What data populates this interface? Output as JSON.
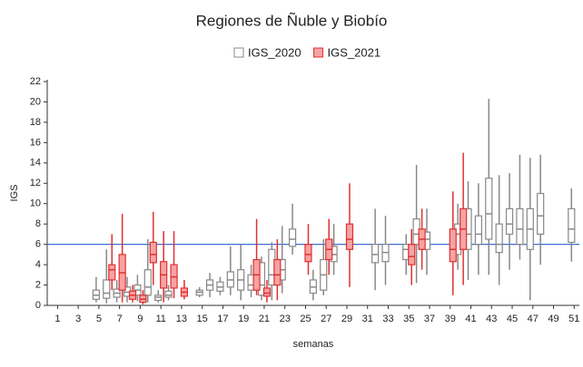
{
  "chart_data": {
    "type": "boxplot",
    "title": "Regiones de Ñuble y Biobío",
    "x_label": "semanas",
    "y_label": "IGS",
    "xlim": [
      0,
      51.5
    ],
    "xticks": [
      1,
      3,
      5,
      7,
      9,
      11,
      13,
      15,
      17,
      19,
      21,
      23,
      25,
      27,
      29,
      31,
      33,
      35,
      37,
      39,
      41,
      43,
      45,
      47,
      49,
      51
    ],
    "ylim": [
      0,
      22
    ],
    "yticks": [
      0,
      2,
      4,
      6,
      8,
      10,
      12,
      14,
      16,
      18,
      20,
      22
    ],
    "reference_line": 6,
    "reference_color": "#3b6fd4",
    "series": [
      {
        "name": "IGS_2020",
        "color": "#888888",
        "fill": "#ffffff",
        "x": [
          5,
          6,
          7,
          8,
          9,
          10,
          11,
          12,
          15,
          16,
          17,
          18,
          19,
          20,
          21,
          22,
          23,
          24,
          26,
          27,
          28,
          32,
          33,
          35,
          36,
          37,
          40,
          41,
          42,
          43,
          44,
          45,
          46,
          47,
          48,
          51
        ],
        "low": [
          0.3,
          0.2,
          0.3,
          0.3,
          0.4,
          0.3,
          0.3,
          0.5,
          0.8,
          0.8,
          1.0,
          1.0,
          0.5,
          0.8,
          0.5,
          0.5,
          1.2,
          5.0,
          0.5,
          1.0,
          3.0,
          1.5,
          2.0,
          3.0,
          2.2,
          3.0,
          3.5,
          2.5,
          3.0,
          3.0,
          2.0,
          3.5,
          4.5,
          0.5,
          4.0,
          4.3
        ],
        "q1": [
          0.6,
          0.7,
          0.8,
          0.9,
          1.0,
          1.0,
          0.5,
          0.8,
          1.0,
          1.5,
          1.4,
          1.8,
          1.5,
          1.5,
          1.0,
          2.0,
          2.5,
          5.8,
          1.2,
          1.5,
          4.3,
          4.2,
          4.3,
          4.5,
          6.0,
          5.5,
          5.0,
          5.5,
          6.0,
          6.5,
          5.2,
          7.0,
          6.0,
          5.5,
          7.0,
          6.2
        ],
        "median": [
          1.0,
          1.2,
          1.2,
          1.3,
          1.5,
          1.8,
          0.8,
          1.0,
          1.3,
          2.0,
          1.8,
          2.5,
          2.5,
          2.0,
          2.0,
          3.0,
          3.5,
          6.5,
          1.8,
          3.0,
          5.0,
          5.0,
          5.2,
          5.5,
          7.0,
          6.5,
          7.0,
          7.0,
          7.0,
          9.0,
          6.0,
          8.0,
          7.5,
          7.5,
          8.8,
          7.5
        ],
        "q3": [
          1.5,
          2.5,
          1.6,
          1.8,
          2.0,
          3.5,
          1.0,
          1.4,
          1.5,
          2.5,
          2.3,
          3.3,
          3.5,
          3.0,
          4.2,
          5.5,
          4.5,
          7.5,
          2.5,
          4.5,
          5.8,
          6.0,
          6.0,
          6.0,
          8.5,
          7.2,
          8.0,
          9.5,
          8.8,
          12.5,
          8.0,
          9.5,
          9.5,
          9.5,
          11.0,
          9.5
        ],
        "high": [
          2.8,
          5.5,
          2.5,
          2.8,
          3.0,
          6.5,
          1.5,
          2.0,
          1.8,
          3.2,
          2.8,
          5.8,
          6.0,
          4.0,
          4.8,
          6.2,
          7.8,
          10.0,
          3.5,
          6.5,
          8.0,
          9.5,
          8.8,
          7.0,
          13.8,
          9.5,
          10.0,
          12.2,
          12.0,
          20.3,
          12.8,
          13.0,
          14.8,
          14.5,
          14.8,
          11.5
        ]
      },
      {
        "name": "IGS_2021",
        "color": "#e03030",
        "fill": "#f6a3a3",
        "x": [
          6,
          7,
          8,
          9,
          10,
          11,
          12,
          13,
          20,
          21,
          22,
          25,
          27,
          29,
          35,
          36,
          39,
          40
        ],
        "low": [
          1.5,
          0.3,
          0.3,
          0.1,
          2.0,
          0.3,
          0.7,
          0.6,
          1.0,
          0.3,
          0.5,
          3.0,
          3.0,
          1.8,
          2.0,
          3.5,
          1.0,
          2.0
        ],
        "q1": [
          2.5,
          1.5,
          0.6,
          0.3,
          4.2,
          1.7,
          1.7,
          0.9,
          1.5,
          0.9,
          2.0,
          4.3,
          4.5,
          5.5,
          4.0,
          5.5,
          4.3,
          5.5
        ],
        "median": [
          3.5,
          3.2,
          1.0,
          0.6,
          5.0,
          3.0,
          2.8,
          1.3,
          3.0,
          1.2,
          3.0,
          5.0,
          5.5,
          6.5,
          4.8,
          6.5,
          5.5,
          7.5
        ],
        "q3": [
          4.0,
          5.0,
          1.4,
          1.0,
          6.2,
          4.3,
          4.0,
          1.7,
          4.5,
          1.7,
          4.5,
          6.0,
          6.5,
          8.0,
          6.0,
          7.5,
          7.5,
          9.5
        ],
        "high": [
          7.0,
          9.0,
          2.0,
          1.5,
          9.2,
          7.3,
          7.3,
          2.5,
          8.5,
          2.5,
          6.5,
          8.0,
          8.5,
          12.0,
          7.5,
          9.5,
          11.2,
          15.0
        ]
      }
    ]
  }
}
